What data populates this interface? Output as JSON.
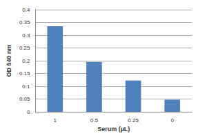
{
  "chart_data": {
    "type": "bar",
    "x_label": "Serum (µL)",
    "y_label": "OD 540 nm",
    "categories": [
      "1",
      "0.5",
      "0.25",
      "0"
    ],
    "values": [
      0.335,
      0.195,
      0.122,
      0.047
    ],
    "color": "#4f81bd",
    "ylim": [
      0,
      0.4
    ],
    "yticks": [
      0,
      0.05,
      0.1,
      0.15,
      0.2,
      0.25,
      0.3,
      0.35,
      0.4
    ],
    "grid": true
  }
}
